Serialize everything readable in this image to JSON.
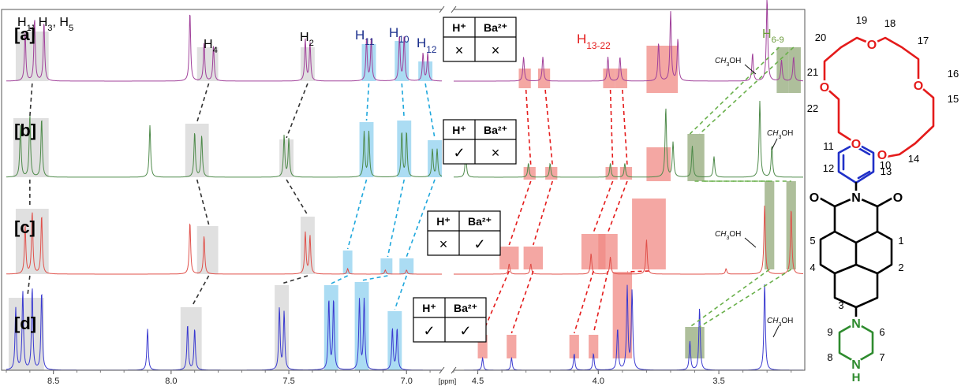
{
  "chart_data": {
    "type": "line",
    "xlabel": "[ppm]",
    "x_reversed": true,
    "axis_break": [
      4.6,
      6.85
    ],
    "left_xlim": [
      8.7,
      6.85
    ],
    "right_xlim": [
      4.6,
      3.15
    ],
    "ticks_left": [
      "8.5",
      "8.0",
      "7.5",
      "7.0"
    ],
    "ticks_right": [
      "4.5",
      "4.0",
      "3.5"
    ],
    "series": [
      {
        "name": "[a]",
        "color": "#a0409a",
        "peaks": [
          {
            "ppm": 8.62,
            "h": 0.7
          },
          {
            "ppm": 8.58,
            "h": 0.9
          },
          {
            "ppm": 8.54,
            "h": 0.85
          },
          {
            "ppm": 7.92,
            "h": 1.0
          },
          {
            "ppm": 7.86,
            "h": 0.55
          },
          {
            "ppm": 7.82,
            "h": 0.5
          },
          {
            "ppm": 7.43,
            "h": 0.6
          },
          {
            "ppm": 7.41,
            "h": 0.55
          },
          {
            "ppm": 7.17,
            "h": 0.6
          },
          {
            "ppm": 7.15,
            "h": 0.6
          },
          {
            "ppm": 7.03,
            "h": 0.65
          },
          {
            "ppm": 7.01,
            "h": 0.65
          },
          {
            "ppm": 6.93,
            "h": 0.4
          },
          {
            "ppm": 6.91,
            "h": 0.4
          },
          {
            "ppm": 4.31,
            "h": 0.35
          },
          {
            "ppm": 4.23,
            "h": 0.35
          },
          {
            "ppm": 3.96,
            "h": 0.35
          },
          {
            "ppm": 3.91,
            "h": 0.35
          },
          {
            "ppm": 3.75,
            "h": 0.55
          },
          {
            "ppm": 3.7,
            "h": 1.0
          },
          {
            "ppm": 3.67,
            "h": 0.6
          },
          {
            "ppm": 3.36,
            "h": 0.4
          },
          {
            "ppm": 3.3,
            "h": 1.2
          },
          {
            "ppm": 3.24,
            "h": 0.3
          },
          {
            "ppm": 3.19,
            "h": 0.35
          }
        ]
      },
      {
        "name": "[b]",
        "color": "#4e8a4a",
        "peaks": [
          {
            "ppm": 8.64,
            "h": 0.75
          },
          {
            "ppm": 8.6,
            "h": 0.9
          },
          {
            "ppm": 8.55,
            "h": 0.85
          },
          {
            "ppm": 8.09,
            "h": 0.75
          },
          {
            "ppm": 7.9,
            "h": 0.65
          },
          {
            "ppm": 7.87,
            "h": 0.6
          },
          {
            "ppm": 7.52,
            "h": 0.6
          },
          {
            "ppm": 7.5,
            "h": 0.55
          },
          {
            "ppm": 7.18,
            "h": 0.65
          },
          {
            "ppm": 7.16,
            "h": 0.65
          },
          {
            "ppm": 7.02,
            "h": 0.65
          },
          {
            "ppm": 7.0,
            "h": 0.65
          },
          {
            "ppm": 6.89,
            "h": 0.4
          },
          {
            "ppm": 6.87,
            "h": 0.4
          },
          {
            "ppm": 4.55,
            "h": 0.35
          },
          {
            "ppm": 4.29,
            "h": 0.2
          },
          {
            "ppm": 4.2,
            "h": 0.2
          },
          {
            "ppm": 3.95,
            "h": 0.2
          },
          {
            "ppm": 3.89,
            "h": 0.2
          },
          {
            "ppm": 3.72,
            "h": 1.0
          },
          {
            "ppm": 3.69,
            "h": 0.5
          },
          {
            "ppm": 3.61,
            "h": 0.45
          },
          {
            "ppm": 3.52,
            "h": 0.3
          },
          {
            "ppm": 3.33,
            "h": 1.1
          },
          {
            "ppm": 3.28,
            "h": 0.45
          }
        ]
      },
      {
        "name": "[c]",
        "color": "#e0504a",
        "peaks": [
          {
            "ppm": 8.62,
            "h": 0.7
          },
          {
            "ppm": 8.59,
            "h": 0.9
          },
          {
            "ppm": 8.55,
            "h": 0.85
          },
          {
            "ppm": 7.92,
            "h": 0.75
          },
          {
            "ppm": 7.86,
            "h": 0.55
          },
          {
            "ppm": 7.43,
            "h": 0.6
          },
          {
            "ppm": 7.41,
            "h": 0.55
          },
          {
            "ppm": 7.25,
            "h": 0.08
          },
          {
            "ppm": 7.09,
            "h": 0.06
          },
          {
            "ppm": 7.0,
            "h": 0.06
          },
          {
            "ppm": 4.37,
            "h": 0.15
          },
          {
            "ppm": 4.28,
            "h": 0.15
          },
          {
            "ppm": 4.03,
            "h": 0.3
          },
          {
            "ppm": 3.95,
            "h": 0.25
          },
          {
            "ppm": 3.8,
            "h": 0.5
          },
          {
            "ppm": 3.47,
            "h": 0.08
          },
          {
            "ppm": 3.31,
            "h": 1.0
          },
          {
            "ppm": 3.2,
            "h": 0.95
          }
        ]
      },
      {
        "name": "[d]",
        "color": "#3a3ad0",
        "peaks": [
          {
            "ppm": 8.66,
            "h": 0.75
          },
          {
            "ppm": 8.63,
            "h": 0.95
          },
          {
            "ppm": 8.59,
            "h": 1.0
          },
          {
            "ppm": 8.55,
            "h": 0.95
          },
          {
            "ppm": 8.1,
            "h": 0.5
          },
          {
            "ppm": 7.93,
            "h": 0.55
          },
          {
            "ppm": 7.9,
            "h": 0.5
          },
          {
            "ppm": 7.54,
            "h": 0.75
          },
          {
            "ppm": 7.52,
            "h": 0.7
          },
          {
            "ppm": 7.33,
            "h": 0.85
          },
          {
            "ppm": 7.31,
            "h": 0.85
          },
          {
            "ppm": 7.2,
            "h": 0.85
          },
          {
            "ppm": 7.18,
            "h": 0.85
          },
          {
            "ppm": 7.06,
            "h": 0.5
          },
          {
            "ppm": 7.04,
            "h": 0.5
          },
          {
            "ppm": 4.48,
            "h": 0.15
          },
          {
            "ppm": 4.36,
            "h": 0.15
          },
          {
            "ppm": 4.1,
            "h": 0.2
          },
          {
            "ppm": 4.02,
            "h": 0.2
          },
          {
            "ppm": 3.92,
            "h": 0.5
          },
          {
            "ppm": 3.88,
            "h": 1.0
          },
          {
            "ppm": 3.86,
            "h": 0.95
          },
          {
            "ppm": 3.62,
            "h": 0.35
          },
          {
            "ppm": 3.58,
            "h": 0.75
          },
          {
            "ppm": 3.31,
            "h": 1.05
          }
        ]
      }
    ],
    "peak_labels": [
      {
        "text": "H1, H3, H5",
        "color": "#000000"
      },
      {
        "text": "H4",
        "color": "#000000"
      },
      {
        "text": "H2",
        "color": "#000000"
      },
      {
        "text": "H11",
        "color": "#1a2e8c"
      },
      {
        "text": "H10",
        "color": "#1a2e8c"
      },
      {
        "text": "H12",
        "color": "#1a2e8c"
      },
      {
        "text": "H13-22",
        "color": "#e41b1b"
      },
      {
        "text": "H6-9",
        "color": "#6a9a3a"
      }
    ],
    "solvent_label": "CH3OH",
    "condition_tables": [
      {
        "h_plus": "×",
        "ba": "×"
      },
      {
        "h_plus": "✓",
        "ba": "×"
      },
      {
        "h_plus": "×",
        "ba": "✓"
      },
      {
        "h_plus": "✓",
        "ba": "✓"
      }
    ],
    "condition_headers": {
      "h_plus": "H⁺",
      "ba": "Ba²⁺"
    }
  },
  "structure": {
    "crown_numbers": [
      "19",
      "18",
      "20",
      "17",
      "21",
      "16",
      "22",
      "15",
      "13",
      "14"
    ],
    "aromatic_numbers": [
      "11",
      "12",
      "10",
      "5",
      "4",
      "3",
      "1",
      "2"
    ],
    "piperazine_numbers": [
      "9",
      "8",
      "6",
      "7"
    ],
    "atoms": {
      "oxygen": "O",
      "nitrogen": "N",
      "nh": "H"
    }
  },
  "colors": {
    "gray_box": "#d6d6d6",
    "blue_box": "#8fd0ef",
    "red_box": "#f08a84",
    "green_box": "#93a97a",
    "ring_red": "#e41b1b",
    "ring_blue": "#2030c8",
    "ring_green": "#2e8b2e"
  }
}
